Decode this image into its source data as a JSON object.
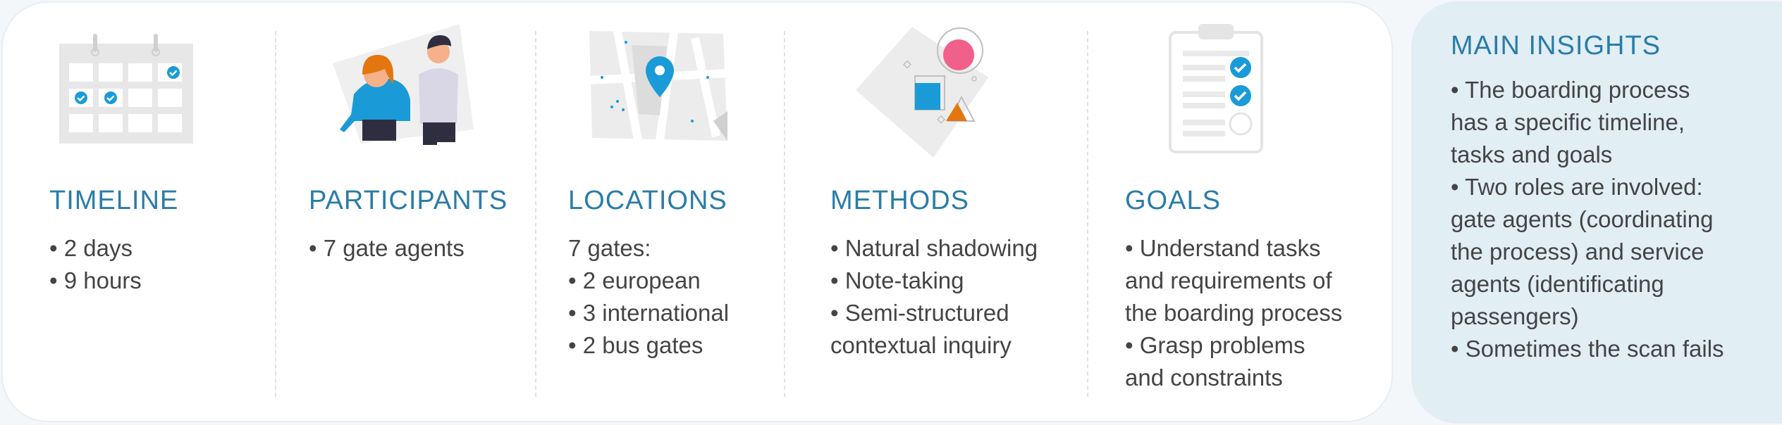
{
  "columns": [
    {
      "key": "timeline",
      "title": "TIMELINE",
      "icon": "calendar-icon",
      "lines": [
        "• 2 days",
        "• 9 hours"
      ]
    },
    {
      "key": "participants",
      "title": "PARTICIPANTS",
      "icon": "people-icon",
      "lines": [
        "• 7 gate agents"
      ]
    },
    {
      "key": "locations",
      "title": "LOCATIONS",
      "icon": "map-pin-icon",
      "lines": [
        "7 gates:",
        "• 2 european",
        "• 3 international",
        "• 2 bus gates"
      ]
    },
    {
      "key": "methods",
      "title": "METHODS",
      "icon": "shapes-icon",
      "lines": [
        "• Natural shadowing",
        "• Note-taking",
        "• Semi-structured",
        "contextual inquiry"
      ]
    },
    {
      "key": "goals",
      "title": "GOALS",
      "icon": "checklist-icon",
      "lines": [
        "• Understand tasks",
        "and requirements of",
        "the boarding process",
        "• Grasp problems",
        "and constraints"
      ]
    }
  ],
  "insights": {
    "title": "MAIN INSIGHTS",
    "lines": [
      "• The boarding process",
      "has a specific timeline,",
      "tasks and goals",
      "• Two roles are involved:",
      "gate agents (coordinating",
      "the process) and service",
      "agents (identificating",
      "passengers)",
      "• Sometimes the scan fails"
    ]
  },
  "colors": {
    "accent": "#2a7ca8",
    "icon_blue": "#1a9bd7",
    "icon_pink": "#f0608a",
    "icon_orange": "#e3760e",
    "insights_bg": "#e1eef4"
  }
}
